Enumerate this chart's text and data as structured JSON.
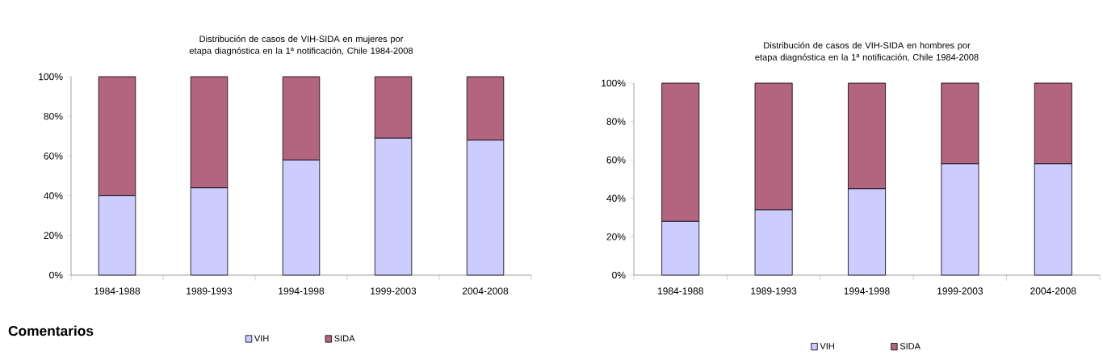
{
  "chart_data": [
    {
      "type": "bar",
      "title": "Distribución de casos de VIH-SIDA en mujeres por etapa diagnóstica en la 1ª notificación, Chile 1984-2008",
      "stacked": true,
      "categories": [
        "1984-1988",
        "1989-1993",
        "1994-1998",
        "1999-2003",
        "2004-2008"
      ],
      "series": [
        {
          "name": "VIH",
          "color": "#ccccff",
          "values": [
            40,
            44,
            58,
            69,
            68
          ]
        },
        {
          "name": "SIDA",
          "color": "#b3647f",
          "values": [
            60,
            56,
            42,
            31,
            32
          ]
        }
      ],
      "ylim": [
        0,
        100
      ],
      "yticks": [
        {
          "value": 0,
          "label": "0%"
        },
        {
          "value": 20,
          "label": "20%"
        },
        {
          "value": 40,
          "label": "40%"
        },
        {
          "value": 60,
          "label": "60%"
        },
        {
          "value": 80,
          "label": "80%"
        },
        {
          "value": 100,
          "label": "100%"
        }
      ],
      "legend": "bottom",
      "grid": false,
      "annotations": [
        "Comentarios"
      ]
    },
    {
      "type": "bar",
      "title": "Distribución de casos de VIH-SIDA en hombres por etapa diagnóstica en la 1ª notificación, Chile 1984-2008",
      "stacked": true,
      "categories": [
        "1984-1988",
        "1989-1993",
        "1994-1998",
        "1999-2003",
        "2004-2008"
      ],
      "series": [
        {
          "name": "VIH",
          "color": "#ccccff",
          "values": [
            28,
            34,
            45,
            58,
            58
          ]
        },
        {
          "name": "SIDA",
          "color": "#b3647f",
          "values": [
            72,
            66,
            55,
            42,
            42
          ]
        }
      ],
      "ylim": [
        0,
        100
      ],
      "yticks": [
        {
          "value": 0,
          "label": "0%"
        },
        {
          "value": 20,
          "label": "20%"
        },
        {
          "value": 40,
          "label": "40%"
        },
        {
          "value": 60,
          "label": "60%"
        },
        {
          "value": 80,
          "label": "80%"
        },
        {
          "value": 100,
          "label": "100%"
        }
      ],
      "legend": "bottom",
      "grid": false
    }
  ]
}
